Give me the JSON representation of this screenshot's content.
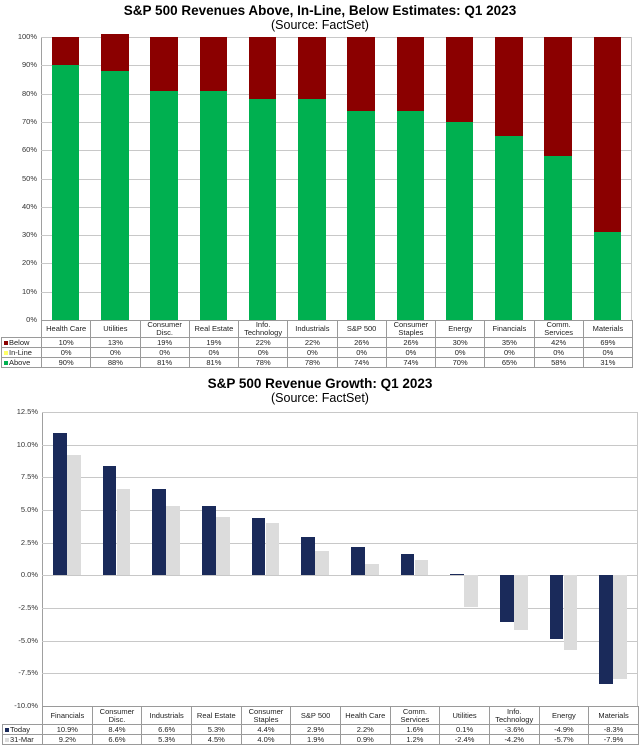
{
  "chart_data": [
    {
      "type": "bar",
      "stacked": true,
      "title": "S&P 500 Revenues Above, In-Line, Below Estimates: Q1 2023",
      "subtitle": "(Source: FactSet)",
      "categories": [
        "Health Care",
        "Utilities",
        "Consumer Disc.",
        "Real Estate",
        "Info. Technology",
        "Industrials",
        "S&P 500",
        "Consumer Staples",
        "Energy",
        "Financials",
        "Comm. Services",
        "Materials"
      ],
      "series": [
        {
          "name": "Below",
          "color": "#8b0000",
          "values": [
            10,
            13,
            19,
            19,
            22,
            22,
            26,
            26,
            30,
            35,
            42,
            69
          ],
          "labels": [
            "10%",
            "13%",
            "19%",
            "19%",
            "22%",
            "22%",
            "26%",
            "26%",
            "30%",
            "35%",
            "42%",
            "69%"
          ]
        },
        {
          "name": "In-Line",
          "color": "#ffff66",
          "values": [
            0,
            0,
            0,
            0,
            0,
            0,
            0,
            0,
            0,
            0,
            0,
            0
          ],
          "labels": [
            "0%",
            "0%",
            "0%",
            "0%",
            "0%",
            "0%",
            "0%",
            "0%",
            "0%",
            "0%",
            "0%",
            "0%"
          ]
        },
        {
          "name": "Above",
          "color": "#00b050",
          "values": [
            90,
            88,
            81,
            81,
            78,
            78,
            74,
            74,
            70,
            65,
            58,
            31
          ],
          "labels": [
            "90%",
            "88%",
            "81%",
            "81%",
            "78%",
            "78%",
            "74%",
            "74%",
            "70%",
            "65%",
            "58%",
            "31%"
          ]
        }
      ],
      "yticks": [
        "100%",
        "90%",
        "80%",
        "70%",
        "60%",
        "50%",
        "40%",
        "30%",
        "20%",
        "10%",
        "0%"
      ],
      "ylim": [
        0,
        100
      ],
      "xlabel": "",
      "ylabel": "",
      "grid": true,
      "legend": "data table"
    },
    {
      "type": "bar",
      "title": "S&P 500 Revenue Growth: Q1 2023",
      "subtitle": "(Source: FactSet)",
      "categories": [
        "Financials",
        "Consumer Disc.",
        "Industrials",
        "Real Estate",
        "Consumer Staples",
        "S&P 500",
        "Health Care",
        "Comm. Services",
        "Utilities",
        "Info. Technology",
        "Energy",
        "Materials"
      ],
      "series": [
        {
          "name": "Today",
          "color": "#1a2a5a",
          "values": [
            10.9,
            8.4,
            6.6,
            5.3,
            4.4,
            2.9,
            2.2,
            1.6,
            0.1,
            -3.6,
            -4.9,
            -8.3
          ],
          "labels": [
            "10.9%",
            "8.4%",
            "6.6%",
            "5.3%",
            "4.4%",
            "2.9%",
            "2.2%",
            "1.6%",
            "0.1%",
            "-3.6%",
            "-4.9%",
            "-8.3%"
          ]
        },
        {
          "name": "31-Mar",
          "color": "#dcdcdc",
          "values": [
            9.2,
            6.6,
            5.3,
            4.5,
            4.0,
            1.9,
            0.9,
            1.2,
            -2.4,
            -4.2,
            -5.7,
            -7.9
          ],
          "labels": [
            "9.2%",
            "6.6%",
            "5.3%",
            "4.5%",
            "4.0%",
            "1.9%",
            "0.9%",
            "1.2%",
            "-2.4%",
            "-4.2%",
            "-5.7%",
            "-7.9%"
          ]
        }
      ],
      "yticks": [
        "12.5%",
        "10.0%",
        "7.5%",
        "5.0%",
        "2.5%",
        "0.0%",
        "-2.5%",
        "-5.0%",
        "-7.5%",
        "-10.0%"
      ],
      "ylim": [
        -10,
        12.5
      ],
      "xlabel": "",
      "ylabel": "",
      "grid": true,
      "legend": "data table"
    }
  ]
}
